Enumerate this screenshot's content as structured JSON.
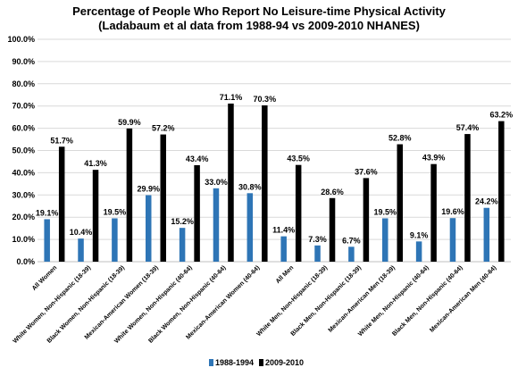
{
  "chart_data": {
    "type": "bar",
    "title": "Percentage of People Who Report No Leisure-time Physical Activity",
    "subtitle": "(Ladabaum et al data from 1988-94 vs 2009-2010 NHANES)",
    "ylim": [
      0,
      100
    ],
    "yticks": [
      "0.0%",
      "10.0%",
      "20.0%",
      "30.0%",
      "40.0%",
      "50.0%",
      "60.0%",
      "70.0%",
      "80.0%",
      "90.0%",
      "100.0%"
    ],
    "grid": true,
    "legend_position": "bottom",
    "categories": [
      "All Women",
      "White Women, Non-Hispanic (18-39)",
      "Black Women, Non-Hispanic (18-39)",
      "Mexican-American Women (18-39)",
      "White Women, Non-Hispanic (40-64)",
      "Black Women, Non-Hispanic (40-64)",
      "Mexican-American Women (40-64)",
      "All Men",
      "White Men, Non-Hispanic (18-39)",
      "Black Men, Non-Hispanic (18-39)",
      "Mexican-American Men (18-39)",
      "White Men, Non-Hispanic (40-64)",
      "Black Men, Non-Hispanic (40-64)",
      "Mexican-American Men (40-64)"
    ],
    "series": [
      {
        "name": "1988-1994",
        "color": "#2e75b6",
        "values": [
          19.1,
          10.4,
          19.5,
          29.9,
          15.2,
          33.0,
          30.8,
          11.4,
          7.3,
          6.7,
          19.5,
          9.1,
          19.6,
          24.2
        ],
        "labels": [
          "19.1%",
          "10.4%",
          "19.5%",
          "29.9%",
          "15.2%",
          "33.0%",
          "30.8%",
          "11.4%",
          "7.3%",
          "6.7%",
          "19.5%",
          "9.1%",
          "19.6%",
          "24.2%"
        ]
      },
      {
        "name": "2009-2010",
        "color": "#000000",
        "values": [
          51.7,
          41.3,
          59.9,
          57.2,
          43.4,
          71.1,
          70.3,
          43.5,
          28.6,
          37.6,
          52.8,
          43.9,
          57.4,
          63.2
        ],
        "labels": [
          "51.7%",
          "41.3%",
          "59.9%",
          "57.2%",
          "43.4%",
          "71.1%",
          "70.3%",
          "43.5%",
          "28.6%",
          "37.6%",
          "52.8%",
          "43.9%",
          "57.4%",
          "63.2%"
        ]
      }
    ]
  }
}
